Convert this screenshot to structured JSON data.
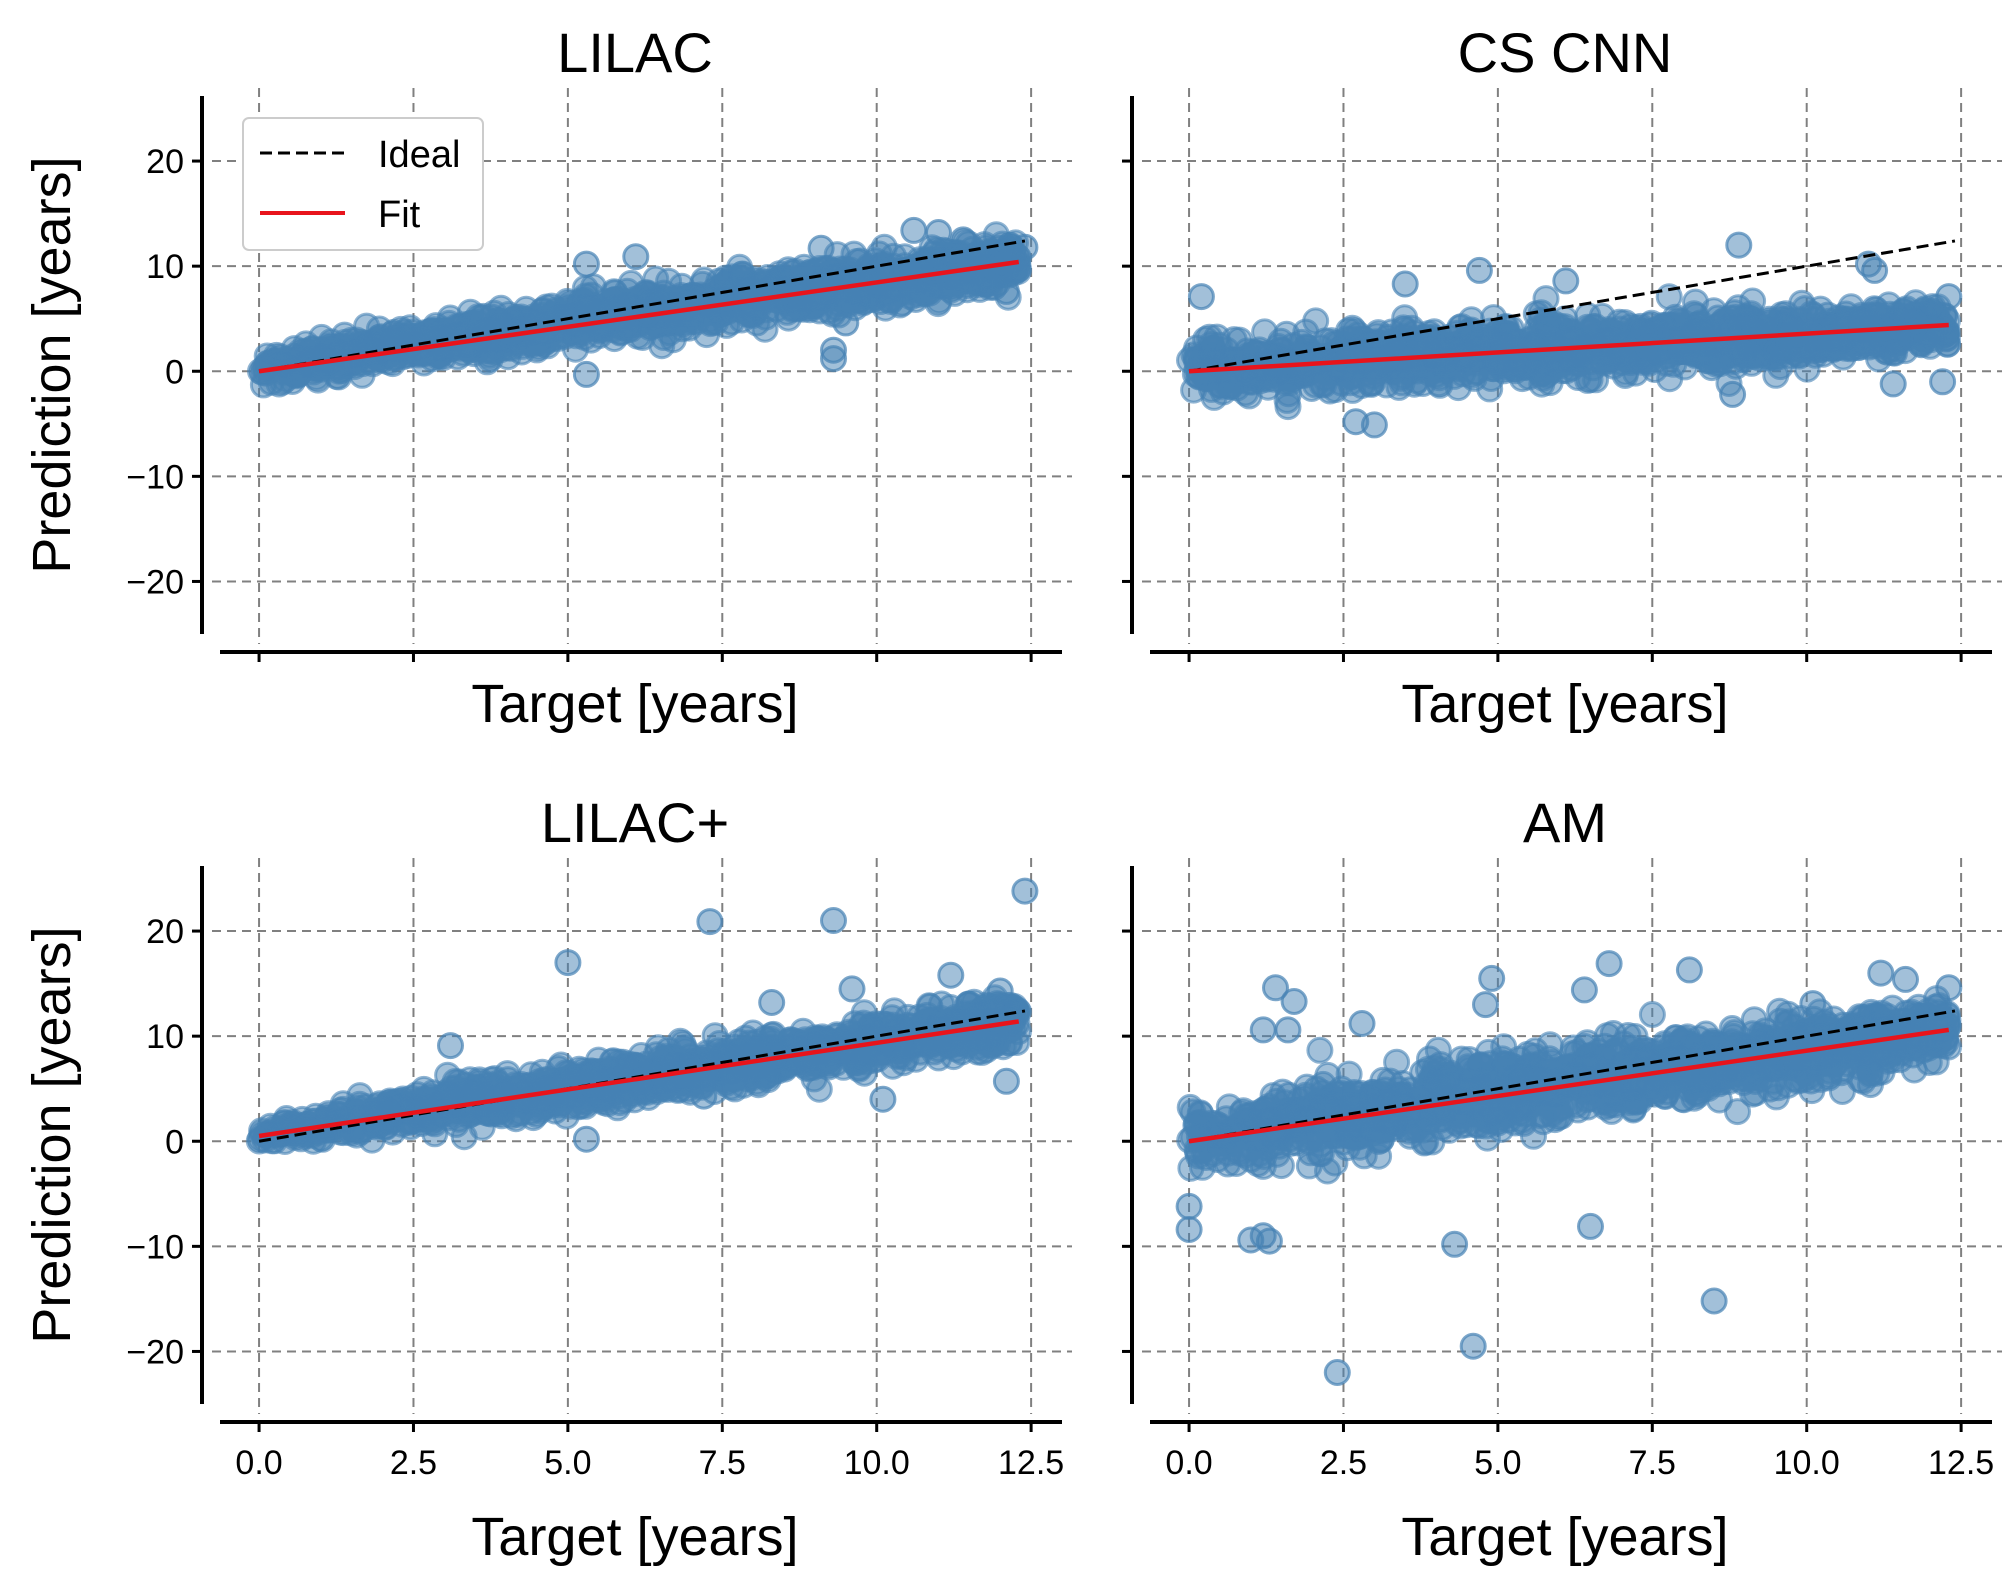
{
  "figure": {
    "y_ticks": [
      "20",
      "10",
      "0",
      "−10",
      "−20"
    ],
    "x_ticks": [
      "0.0",
      "2.5",
      "5.0",
      "7.5",
      "10.0",
      "12.5"
    ],
    "legend": {
      "ideal_label": "Ideal",
      "fit_label": "Fit"
    }
  },
  "colors": {
    "points": "#4682b4",
    "fit": "#e8141c",
    "ideal": "#000000",
    "grid": "#808080"
  },
  "chart_data": [
    {
      "type": "scatter",
      "title": "LILAC",
      "xlabel": "Target [years]",
      "ylabel": "Prediction [years]",
      "xlim": [
        -0.6,
        13.0
      ],
      "ylim": [
        -25.0,
        26.0
      ],
      "xticks": [
        0.0,
        2.5,
        5.0,
        7.5,
        10.0,
        12.5
      ],
      "yticks": [
        -20,
        -10,
        0,
        10,
        20
      ],
      "grid": true,
      "legend": "top-left",
      "series": [
        {
          "name": "Ideal",
          "kind": "line",
          "style": "dashed",
          "x": [
            0,
            12.4
          ],
          "y": [
            0,
            12.4
          ]
        },
        {
          "name": "Fit",
          "kind": "line",
          "style": "solid",
          "x": [
            0,
            12.3
          ],
          "y": [
            0.0,
            10.4
          ]
        }
      ],
      "points": {
        "trend": [
          {
            "x": 0.0,
            "y": 0.0,
            "sd": 0.9
          },
          {
            "x": 2.5,
            "y": 2.7,
            "sd": 1.3
          },
          {
            "x": 5.0,
            "y": 4.6,
            "sd": 1.5
          },
          {
            "x": 7.5,
            "y": 6.6,
            "sd": 1.5
          },
          {
            "x": 10.0,
            "y": 8.6,
            "sd": 1.6
          },
          {
            "x": 12.3,
            "y": 10.4,
            "sd": 1.4
          }
        ],
        "outliers": [
          [
            12.4,
            11.8
          ],
          [
            11.0,
            13.2
          ],
          [
            10.6,
            13.4
          ],
          [
            9.1,
            11.7
          ],
          [
            6.1,
            10.9
          ],
          [
            5.3,
            10.2
          ],
          [
            9.3,
            1.2
          ],
          [
            9.3,
            2.0
          ],
          [
            9.5,
            4.6
          ],
          [
            5.3,
            -0.3
          ],
          [
            12.1,
            7.6
          ],
          [
            11.9,
            8.0
          ],
          [
            11.4,
            12.5
          ]
        ]
      }
    },
    {
      "type": "scatter",
      "title": "CS CNN",
      "xlabel": "Target [years]",
      "ylabel": "",
      "xlim": [
        -0.6,
        13.0
      ],
      "ylim": [
        -25.0,
        26.0
      ],
      "xticks": [
        0.0,
        2.5,
        5.0,
        7.5,
        10.0,
        12.5
      ],
      "yticks": [
        -20,
        -10,
        0,
        10,
        20
      ],
      "grid": true,
      "legend": "",
      "series": [
        {
          "name": "Ideal",
          "kind": "line",
          "style": "dashed",
          "x": [
            0,
            12.4
          ],
          "y": [
            0,
            12.4
          ]
        },
        {
          "name": "Fit",
          "kind": "line",
          "style": "solid",
          "x": [
            0,
            12.3
          ],
          "y": [
            0.0,
            4.4
          ]
        }
      ],
      "points": {
        "trend": [
          {
            "x": 0.0,
            "y": 0.2,
            "sd": 1.6
          },
          {
            "x": 2.5,
            "y": 1.1,
            "sd": 1.8
          },
          {
            "x": 5.0,
            "y": 1.8,
            "sd": 2.0
          },
          {
            "x": 7.5,
            "y": 2.7,
            "sd": 1.8
          },
          {
            "x": 10.0,
            "y": 3.5,
            "sd": 1.6
          },
          {
            "x": 12.3,
            "y": 4.4,
            "sd": 1.4
          }
        ],
        "outliers": [
          [
            8.9,
            12.0
          ],
          [
            4.7,
            9.6
          ],
          [
            11.0,
            10.2
          ],
          [
            11.1,
            9.6
          ],
          [
            12.3,
            7.1
          ],
          [
            0.2,
            7.1
          ],
          [
            6.1,
            8.6
          ],
          [
            3.5,
            8.3
          ],
          [
            8.8,
            -2.2
          ],
          [
            11.4,
            -1.2
          ],
          [
            12.2,
            -1.0
          ],
          [
            2.7,
            -4.8
          ],
          [
            3.0,
            -5.1
          ]
        ]
      }
    },
    {
      "type": "scatter",
      "title": "LILAC+",
      "xlabel": "Target [years]",
      "ylabel": "Prediction [years]",
      "xlim": [
        -0.6,
        13.0
      ],
      "ylim": [
        -25.0,
        26.0
      ],
      "xticks": [
        0.0,
        2.5,
        5.0,
        7.5,
        10.0,
        12.5
      ],
      "yticks": [
        -20,
        -10,
        0,
        10,
        20
      ],
      "grid": true,
      "legend": "",
      "series": [
        {
          "name": "Ideal",
          "kind": "line",
          "style": "dashed",
          "x": [
            0,
            12.4
          ],
          "y": [
            0,
            12.4
          ]
        },
        {
          "name": "Fit",
          "kind": "line",
          "style": "solid",
          "x": [
            0,
            12.3
          ],
          "y": [
            0.5,
            11.4
          ]
        }
      ],
      "points": {
        "trend": [
          {
            "x": 0.0,
            "y": 0.6,
            "sd": 0.8
          },
          {
            "x": 2.5,
            "y": 2.9,
            "sd": 1.3
          },
          {
            "x": 5.0,
            "y": 5.0,
            "sd": 1.4
          },
          {
            "x": 7.5,
            "y": 7.1,
            "sd": 1.4
          },
          {
            "x": 10.0,
            "y": 9.3,
            "sd": 1.5
          },
          {
            "x": 12.3,
            "y": 11.4,
            "sd": 1.5
          }
        ],
        "outliers": [
          [
            12.4,
            23.8
          ],
          [
            7.3,
            20.9
          ],
          [
            9.3,
            21.0
          ],
          [
            5.0,
            17.0
          ],
          [
            11.2,
            15.8
          ],
          [
            9.6,
            14.5
          ],
          [
            8.3,
            13.2
          ],
          [
            3.1,
            9.1
          ],
          [
            5.3,
            0.2
          ],
          [
            10.1,
            4.0
          ],
          [
            12.1,
            5.7
          ],
          [
            7.2,
            4.3
          ],
          [
            12.0,
            14.3
          ]
        ]
      }
    },
    {
      "type": "scatter",
      "title": "AM",
      "xlabel": "Target [years]",
      "ylabel": "",
      "xlim": [
        -0.6,
        13.0
      ],
      "ylim": [
        -25.0,
        26.0
      ],
      "xticks": [
        0.0,
        2.5,
        5.0,
        7.5,
        10.0,
        12.5
      ],
      "yticks": [
        -20,
        -10,
        0,
        10,
        20
      ],
      "grid": true,
      "legend": "",
      "series": [
        {
          "name": "Ideal",
          "kind": "line",
          "style": "dashed",
          "x": [
            0,
            12.4
          ],
          "y": [
            0,
            12.4
          ]
        },
        {
          "name": "Fit",
          "kind": "line",
          "style": "solid",
          "x": [
            0,
            12.3
          ],
          "y": [
            0.0,
            10.6
          ]
        }
      ],
      "points": {
        "trend": [
          {
            "x": 0.0,
            "y": 0.5,
            "sd": 2.2
          },
          {
            "x": 2.5,
            "y": 2.6,
            "sd": 2.5
          },
          {
            "x": 5.0,
            "y": 4.7,
            "sd": 2.4
          },
          {
            "x": 7.5,
            "y": 6.6,
            "sd": 2.2
          },
          {
            "x": 10.0,
            "y": 8.8,
            "sd": 2.0
          },
          {
            "x": 12.3,
            "y": 10.6,
            "sd": 1.8
          }
        ],
        "outliers": [
          [
            2.4,
            -22.0
          ],
          [
            4.6,
            -19.5
          ],
          [
            8.5,
            -15.2
          ],
          [
            4.3,
            -9.8
          ],
          [
            1.0,
            -9.4
          ],
          [
            1.3,
            -9.5
          ],
          [
            0.0,
            -8.4
          ],
          [
            6.5,
            -8.1
          ],
          [
            0.0,
            -6.2
          ],
          [
            1.2,
            -9.0
          ],
          [
            1.4,
            14.6
          ],
          [
            1.7,
            13.3
          ],
          [
            6.8,
            16.9
          ],
          [
            8.1,
            16.3
          ],
          [
            4.9,
            15.5
          ],
          [
            6.4,
            14.4
          ],
          [
            11.2,
            16.0
          ],
          [
            2.8,
            11.2
          ],
          [
            4.8,
            13.0
          ],
          [
            12.3,
            14.6
          ],
          [
            11.6,
            15.4
          ],
          [
            1.6,
            10.6
          ],
          [
            1.2,
            10.6
          ],
          [
            10.1,
            13.1
          ]
        ]
      }
    }
  ]
}
